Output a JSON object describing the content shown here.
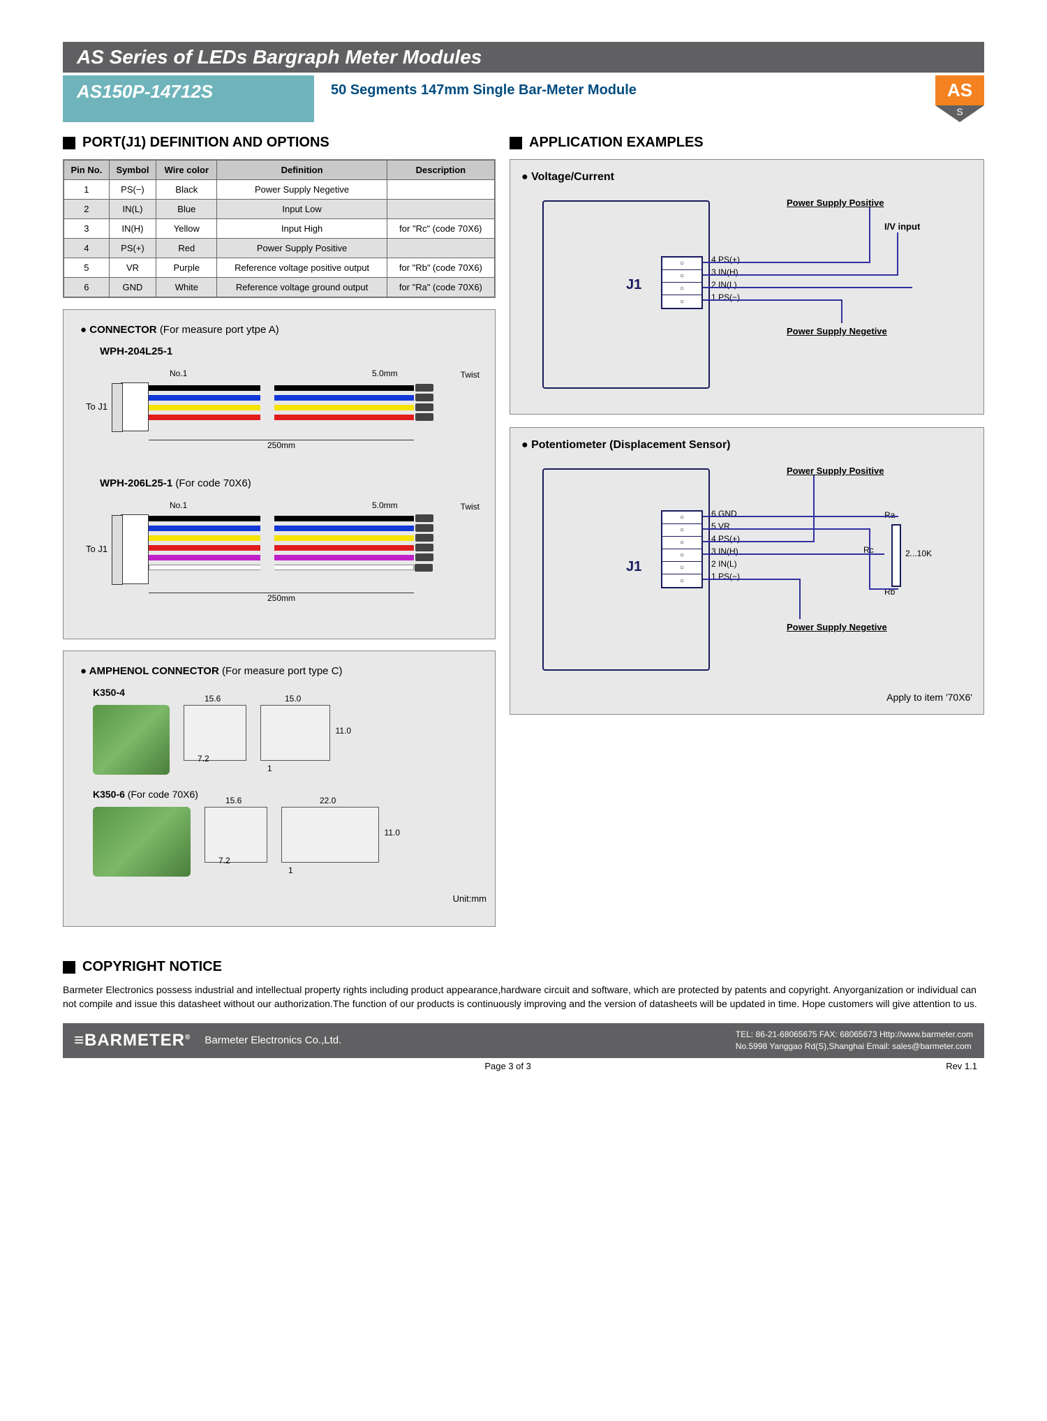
{
  "header": {
    "series_title": "AS Series of LEDs Bargraph Meter Modules",
    "model": "AS150P-14712S",
    "subtitle": "50 Segments  147mm Single Bar-Meter Module",
    "badge_top": "AS",
    "badge_bottom": "S"
  },
  "port_section": {
    "title": "PORT(J1) DEFINITION AND OPTIONS",
    "columns": [
      "Pin No.",
      "Symbol",
      "Wire color",
      "Definition",
      "Description"
    ],
    "rows": [
      [
        "1",
        "PS(−)",
        "Black",
        "Power Supply Negetive",
        ""
      ],
      [
        "2",
        "IN(L)",
        "Blue",
        "Input Low",
        ""
      ],
      [
        "3",
        "IN(H)",
        "Yellow",
        "Input High",
        "for \"Rc\" (code 70X6)"
      ],
      [
        "4",
        "PS(+)",
        "Red",
        "Power Supply Positive",
        ""
      ],
      [
        "5",
        "VR",
        "Purple",
        "Reference voltage positive output",
        "for \"Rb\" (code 70X6)"
      ],
      [
        "6",
        "GND",
        "White",
        "Reference voltage ground output",
        "for \"Ra\" (code 70X6)"
      ]
    ]
  },
  "connector": {
    "heading": "CONNECTOR",
    "heading_paren": "(For measure port ytpe A)",
    "wph4": {
      "label": "WPH-204L25-1",
      "no1": "No.1",
      "len": "250mm",
      "tip": "5.0mm",
      "twist": "Twist",
      "toj1": "To J1",
      "colors": [
        "#000000",
        "#1238d8",
        "#f5e400",
        "#e21c1c"
      ]
    },
    "wph6": {
      "label": "WPH-206L25-1",
      "paren": "(For code 70X6)",
      "no1": "No.1",
      "len": "250mm",
      "tip": "5.0mm",
      "twist": "Twist",
      "toj1": "To J1",
      "colors": [
        "#000000",
        "#1238d8",
        "#f5e400",
        "#e21c1c",
        "#c020c8",
        "#ffffff"
      ]
    }
  },
  "amphenol": {
    "heading": "AMPHENOL CONNECTOR",
    "heading_paren": "(For measure port type C)",
    "k4": {
      "label": "K350-4",
      "dims": {
        "w1": "15.6",
        "w2": "15.0",
        "h": "11.0",
        "d": "7.2",
        "pin": "1"
      }
    },
    "k6": {
      "label": "K350-6",
      "paren": "(For code 70X6)",
      "dims": {
        "w1": "15.6",
        "w2": "22.0",
        "h": "11.0",
        "d": "7.2",
        "pin": "1"
      }
    },
    "unit": "Unit:mm"
  },
  "application": {
    "title": "APPLICATION EXAMPLES",
    "vc": {
      "title": "Voltage/Current",
      "j1": "J1",
      "pins": [
        "4 PS(+)",
        "3 IN(H)",
        "2 IN(L)",
        "1 PS(−)"
      ],
      "pos": "Power Supply Positive",
      "neg": "Power Supply Negetive",
      "iv": "I/V input"
    },
    "pot": {
      "title": "Potentiometer (Displacement Sensor)",
      "j1": "J1",
      "pins": [
        "6 GND",
        "5 VR",
        "4 PS(+)",
        "3 IN(H)",
        "2 IN(L)",
        "1 PS(−)"
      ],
      "pos": "Power Supply Positive",
      "neg": "Power Supply Negetive",
      "ra": "Ra",
      "rb": "Rb",
      "rc": "Rc",
      "val": "2...10K",
      "apply": "Apply to item '70X6'"
    }
  },
  "copyright": {
    "title": "COPYRIGHT NOTICE",
    "text": "Barmeter Electronics possess industrial and intellectual property rights including product appearance,hardware circuit and software, which are protected by patents and copyright. Anyorganization or individual can not compile and issue this datasheet without our authorization.The function of our products is continuously improving and the version of datasheets will be updated in time. Hope customers will give attention to us."
  },
  "footer": {
    "logo": "BARMETER",
    "reg": "®",
    "company": "Barmeter Electronics Co.,Ltd.",
    "line1": "TEL: 86-21-68065675 FAX: 68065673  Http://www.barmeter.com",
    "line2": "No.5998 Yanggao Rd(S),Shanghai  Email: sales@barmeter.com",
    "page": "Page 3 of 3",
    "rev": "Rev 1.1"
  },
  "style": {
    "header_dark": "#606062",
    "header_teal": "#6fb4bb",
    "header_sub_color": "#004c7f",
    "badge_orange": "#f58220",
    "panel_bg": "#e8e8e8",
    "wire_blue": "#3030a0"
  }
}
